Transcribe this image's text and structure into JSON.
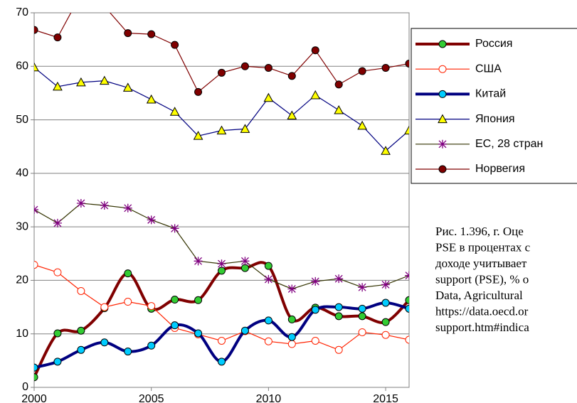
{
  "chart_data": {
    "type": "line",
    "xlim": [
      2000,
      2016
    ],
    "xticks": [
      2000,
      2005,
      2010,
      2015
    ],
    "ylim": [
      0,
      70
    ],
    "yticks": [
      0,
      10,
      20,
      30,
      40,
      50,
      60,
      70
    ],
    "grid": true,
    "x": [
      2000,
      2001,
      2002,
      2003,
      2004,
      2005,
      2006,
      2007,
      2008,
      2009,
      2010,
      2011,
      2012,
      2013,
      2014,
      2015,
      2016
    ],
    "series": [
      {
        "name": "Россия",
        "color": "#800000",
        "marker_color": "#33cc33",
        "marker": "circle",
        "line_width": 4,
        "smooth": true,
        "values": [
          1.9,
          10.1,
          10.6,
          14.8,
          21.3,
          14.7,
          16.4,
          16.3,
          21.8,
          22.3,
          22.7,
          12.7,
          14.9,
          13.3,
          13.3,
          12.2,
          16.3
        ]
      },
      {
        "name": "США",
        "color": "#ff2200",
        "marker_color": "#ffffff",
        "marker": "circle",
        "line_width": 1.2,
        "smooth": false,
        "values": [
          22.9,
          21.5,
          18.0,
          15.0,
          16.0,
          15.2,
          11.1,
          9.9,
          8.7,
          10.5,
          8.6,
          8.1,
          8.7,
          7.0,
          10.3,
          9.8,
          8.9
        ]
      },
      {
        "name": "Китай",
        "color": "#000080",
        "marker_color": "#00ccff",
        "marker": "circle",
        "line_width": 4,
        "smooth": true,
        "values": [
          3.7,
          4.8,
          7.0,
          8.4,
          6.7,
          7.8,
          11.6,
          10.1,
          4.8,
          10.6,
          12.5,
          9.4,
          14.5,
          15.0,
          14.7,
          15.8,
          14.7
        ]
      },
      {
        "name": "Япония",
        "color": "#000080",
        "marker_color": "#ffff00",
        "marker": "triangle",
        "line_width": 1.2,
        "smooth": false,
        "values": [
          59.8,
          56.2,
          57.0,
          57.3,
          56.0,
          53.8,
          51.5,
          47.0,
          48.0,
          48.3,
          54.1,
          50.8,
          54.6,
          51.8,
          48.9,
          44.2,
          48.0
        ]
      },
      {
        "name": "ЕС, 28 стран",
        "color": "#333300",
        "marker_color": "#800080",
        "marker": "star",
        "line_width": 1.2,
        "smooth": false,
        "values": [
          33.2,
          30.7,
          34.4,
          34.0,
          33.5,
          31.3,
          29.7,
          23.6,
          23.1,
          23.6,
          20.2,
          18.4,
          19.8,
          20.3,
          18.7,
          19.2,
          20.9
        ]
      },
      {
        "name": "Норвегия",
        "color": "#800000",
        "marker_color": "#800000",
        "marker": "circle",
        "line_width": 1.2,
        "smooth": false,
        "values": [
          66.8,
          65.4,
          73.5,
          71.2,
          66.2,
          66.0,
          64.0,
          55.2,
          58.8,
          60.0,
          59.7,
          58.2,
          63.0,
          56.6,
          59.1,
          59.7,
          60.5
        ]
      }
    ],
    "caption": [
      "Рис. 1.396, г. Оце",
      "PSE в процентах с",
      "доходе учитывает",
      "support (PSE), % o",
      "Data, Agricultural",
      "https://data.oecd.or",
      "support.htm#indica"
    ]
  }
}
